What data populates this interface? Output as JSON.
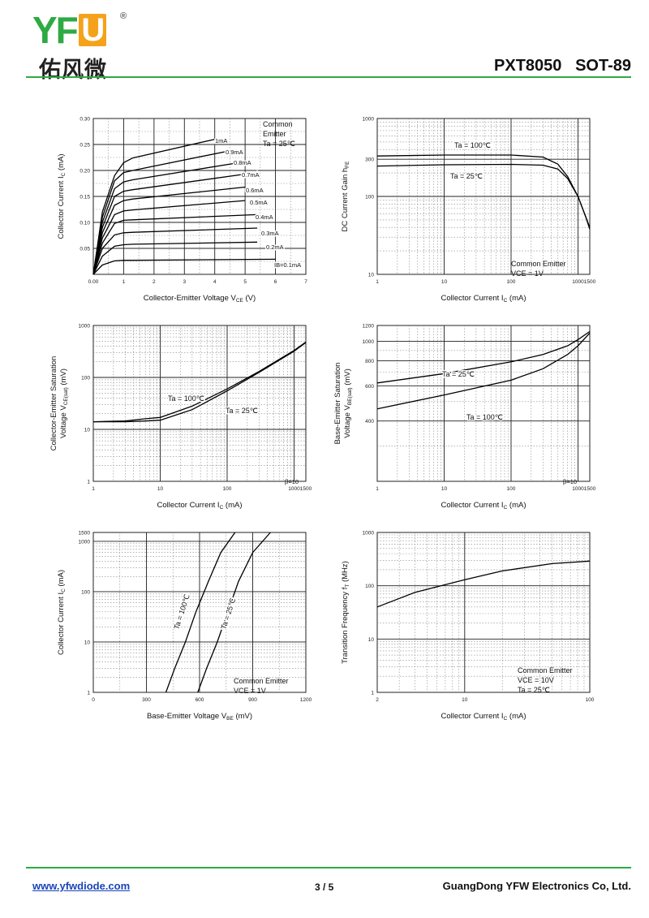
{
  "header": {
    "logo_letters": "YF",
    "logo_u": "U",
    "logo_reg": "®",
    "logo_cn": "佑风微",
    "title": "PXT8050   SOT-89"
  },
  "footer": {
    "website": "www.yfwdiode.com",
    "page": "3 / 5",
    "company": "GuangDong YFW Electronics Co, Ltd."
  },
  "colors": {
    "brand_green": "#2eaa43",
    "brand_orange": "#f5a21b",
    "link_blue": "#1a44b8"
  },
  "charts": [
    {
      "id": "ic-vce",
      "type": "line",
      "xlabel": "Collector-Emitter Voltage  V",
      "xlabel_sub": "CE",
      "xlabel_tail": "  (V)",
      "ylabel": "Collector Current  I",
      "ylabel_sub": "C",
      "ylabel_tail": "  (mA)",
      "xscale": "linear",
      "yscale": "linear",
      "xlim": [
        0,
        7
      ],
      "ylim": [
        0,
        0.3
      ],
      "xticks": [
        {
          "v": 0,
          "t": "0.00"
        },
        {
          "v": 1,
          "t": "1"
        },
        {
          "v": 2,
          "t": "2"
        },
        {
          "v": 3,
          "t": "3"
        },
        {
          "v": 4,
          "t": "4"
        },
        {
          "v": 5,
          "t": "5"
        },
        {
          "v": 6,
          "t": "6"
        },
        {
          "v": 7,
          "t": "7"
        }
      ],
      "yticks": [
        {
          "v": 0.05,
          "t": "0.05"
        },
        {
          "v": 0.1,
          "t": "0.10"
        },
        {
          "v": 0.15,
          "t": "0.15"
        },
        {
          "v": 0.2,
          "t": "0.20"
        },
        {
          "v": 0.25,
          "t": "0.25"
        },
        {
          "v": 0.3,
          "t": "0.30"
        }
      ],
      "notes": [
        {
          "lines": [
            "Common",
            "Emitter",
            "Ta = 25℃"
          ]
        }
      ],
      "series": [
        {
          "name": "1mA",
          "x": [
            0,
            0.3,
            0.7,
            1.0,
            1.3,
            4.0
          ],
          "y": [
            0,
            0.12,
            0.19,
            0.215,
            0.224,
            0.26
          ]
        },
        {
          "name": "0.9mA",
          "x": [
            0,
            0.3,
            0.7,
            1.0,
            1.3,
            4.5
          ],
          "y": [
            0,
            0.11,
            0.18,
            0.196,
            0.2,
            0.238
          ]
        },
        {
          "name": "0.8mA",
          "x": [
            0,
            0.3,
            0.7,
            1.0,
            1.3,
            4.8
          ],
          "y": [
            0,
            0.1,
            0.165,
            0.178,
            0.182,
            0.215
          ]
        },
        {
          "name": "0.7mA",
          "x": [
            0,
            0.3,
            0.7,
            1.0,
            1.3,
            5.0
          ],
          "y": [
            0,
            0.09,
            0.15,
            0.16,
            0.163,
            0.193
          ]
        },
        {
          "name": "0.6mA",
          "x": [
            0,
            0.3,
            0.7,
            1.0,
            1.3,
            5.0
          ],
          "y": [
            0,
            0.08,
            0.133,
            0.142,
            0.145,
            0.168
          ]
        },
        {
          "name": "0.5mA",
          "x": [
            0,
            0.3,
            0.7,
            1.0,
            1.3,
            5.0
          ],
          "y": [
            0,
            0.07,
            0.115,
            0.122,
            0.124,
            0.142
          ]
        },
        {
          "name": "0.4mA",
          "x": [
            0,
            0.3,
            0.7,
            1.0,
            1.3,
            5.4
          ],
          "y": [
            0,
            0.06,
            0.098,
            0.104,
            0.105,
            0.115
          ]
        },
        {
          "name": "0.3mA",
          "x": [
            0,
            0.3,
            0.7,
            1.0,
            1.3,
            5.4
          ],
          "y": [
            0,
            0.05,
            0.076,
            0.08,
            0.081,
            0.089
          ]
        },
        {
          "name": "0.2mA",
          "x": [
            0,
            0.3,
            0.7,
            1.0,
            1.3,
            5.4
          ],
          "y": [
            0,
            0.035,
            0.054,
            0.057,
            0.058,
            0.062
          ]
        },
        {
          "name": "IB=0.1mA",
          "x": [
            0,
            0.3,
            0.7,
            1.0,
            1.3,
            6.0
          ],
          "y": [
            0,
            0.018,
            0.026,
            0.027,
            0.027,
            0.029
          ]
        }
      ],
      "curve_labels": [
        "1mA",
        "0.9mA",
        "0.8mA",
        "0.7mA",
        "0.6mA",
        "0.5mA",
        "0.4mA",
        "0.3mA",
        "0.2mA",
        "IB=0.1mA"
      ]
    },
    {
      "id": "hfe-ic",
      "type": "line",
      "xlabel": "Collector Current  I",
      "xlabel_sub": "C",
      "xlabel_tail": "  (mA)",
      "ylabel": "DC Current Gain  h",
      "ylabel_sub": "FE",
      "ylabel_tail": "",
      "xscale": "log",
      "yscale": "log",
      "xlim": [
        1,
        1500
      ],
      "ylim": [
        10,
        1000
      ],
      "xticks": [
        {
          "v": 1,
          "t": "1"
        },
        {
          "v": 10,
          "t": "10"
        },
        {
          "v": 100,
          "t": "100"
        },
        {
          "v": 1000,
          "t": "1000"
        },
        {
          "v": 1500,
          "t": "1500"
        }
      ],
      "yticks": [
        {
          "v": 10,
          "t": "10"
        },
        {
          "v": 100,
          "t": "100"
        },
        {
          "v": 300,
          "t": "300"
        },
        {
          "v": 1000,
          "t": "1000"
        }
      ],
      "notes": [
        {
          "lines": [
            "Common Emitter",
            "VCE = 1V"
          ]
        }
      ],
      "series": [
        {
          "name": "Ta = 100℃",
          "x": [
            1,
            10,
            100,
            300,
            500,
            700,
            1000,
            1300,
            1500
          ],
          "y": [
            330,
            340,
            340,
            320,
            260,
            180,
            100,
            55,
            40
          ]
        },
        {
          "name": "Ta = 25℃",
          "x": [
            1,
            10,
            100,
            300,
            500,
            700,
            1000,
            1300,
            1500
          ],
          "y": [
            245,
            255,
            258,
            252,
            225,
            170,
            100,
            55,
            38
          ]
        }
      ]
    },
    {
      "id": "vcesat-ic",
      "type": "line",
      "xlabel": "Collector Current  I",
      "xlabel_sub": "C",
      "xlabel_tail": "  (mA)",
      "ylabel": "Collector-Emitter Saturation",
      "ylabel2": "Voltage V",
      "ylabel2_sub": "CE(sat)",
      "ylabel2_tail": "  (mV)",
      "xscale": "log",
      "yscale": "log",
      "xlim": [
        1,
        1500
      ],
      "ylim": [
        1,
        1000
      ],
      "xticks": [
        {
          "v": 1,
          "t": "1"
        },
        {
          "v": 10,
          "t": "10"
        },
        {
          "v": 100,
          "t": "100"
        },
        {
          "v": 1000,
          "t": "1000"
        },
        {
          "v": 1500,
          "t": "1500"
        }
      ],
      "yticks": [
        {
          "v": 1,
          "t": "1"
        },
        {
          "v": 10,
          "t": "10"
        },
        {
          "v": 100,
          "t": "100"
        },
        {
          "v": 1000,
          "t": "1000"
        }
      ],
      "notes": [
        {
          "lines": [
            "β=10"
          ]
        }
      ],
      "series": [
        {
          "name": "Ta = 100℃",
          "x": [
            1,
            3,
            6,
            10,
            30,
            100,
            300,
            1000,
            1500
          ],
          "y": [
            14,
            14.5,
            16,
            17,
            28,
            60,
            130,
            330,
            480
          ]
        },
        {
          "name": "Ta = 25℃",
          "x": [
            1,
            3,
            6,
            10,
            30,
            100,
            300,
            1000,
            1500
          ],
          "y": [
            14,
            14,
            14.5,
            15,
            24,
            55,
            125,
            320,
            470
          ]
        }
      ]
    },
    {
      "id": "vbesat-ic",
      "type": "line",
      "xlabel": "Collector Current  I",
      "xlabel_sub": "C",
      "xlabel_tail": "  (mA)",
      "ylabel": "Base-Emitter Saturation",
      "ylabel2": "Voltage V",
      "ylabel2_sub": "BE(sat)",
      "ylabel2_tail": "  (mV)",
      "xscale": "log",
      "yscale": "log",
      "xlim": [
        1,
        1500
      ],
      "ylim": [
        200,
        1200
      ],
      "xticks": [
        {
          "v": 1,
          "t": "1"
        },
        {
          "v": 10,
          "t": "10"
        },
        {
          "v": 100,
          "t": "100"
        },
        {
          "v": 1000,
          "t": "1000"
        },
        {
          "v": 1500,
          "t": "1500"
        }
      ],
      "yticks": [
        {
          "v": 400,
          "t": "400"
        },
        {
          "v": 600,
          "t": "600"
        },
        {
          "v": 800,
          "t": "800"
        },
        {
          "v": 1000,
          "t": "1000"
        },
        {
          "v": 1200,
          "t": "1200"
        }
      ],
      "notes": [
        {
          "lines": [
            "β=10"
          ]
        }
      ],
      "series": [
        {
          "name": "Ta = 25℃",
          "x": [
            1,
            10,
            100,
            300,
            700,
            1000,
            1500
          ],
          "y": [
            620,
            690,
            790,
            860,
            950,
            1020,
            1120
          ]
        },
        {
          "name": "Ta = 100℃",
          "x": [
            1,
            10,
            100,
            300,
            700,
            1000,
            1500
          ],
          "y": [
            460,
            540,
            640,
            730,
            860,
            950,
            1100
          ]
        }
      ]
    },
    {
      "id": "ic-vbe",
      "type": "line",
      "xlabel": "Base-Emitter Voltage  V",
      "xlabel_sub": "BE",
      "xlabel_tail": "  (mV)",
      "ylabel": "Collector Current  I",
      "ylabel_sub": "C",
      "ylabel_tail": "  (mA)",
      "xscale": "linear",
      "yscale": "log",
      "xlim": [
        0,
        1200
      ],
      "ylim": [
        1,
        1500
      ],
      "xticks": [
        {
          "v": 0,
          "t": "0"
        },
        {
          "v": 300,
          "t": "300"
        },
        {
          "v": 600,
          "t": "600"
        },
        {
          "v": 900,
          "t": "900"
        },
        {
          "v": 1200,
          "t": "1200"
        }
      ],
      "yticks": [
        {
          "v": 1,
          "t": "1"
        },
        {
          "v": 10,
          "t": "10"
        },
        {
          "v": 100,
          "t": "100"
        },
        {
          "v": 1000,
          "t": "1000"
        },
        {
          "v": 1500,
          "t": "1500"
        }
      ],
      "notes": [
        {
          "lines": [
            "Common Emitter",
            "VCE = 1V"
          ]
        }
      ],
      "series": [
        {
          "name": "Ta = 100℃",
          "x": [
            410,
            460,
            520,
            580,
            650,
            720,
            800
          ],
          "y": [
            1,
            3,
            10,
            40,
            160,
            600,
            1500
          ]
        },
        {
          "name": "Ta = 25℃",
          "x": [
            590,
            640,
            700,
            760,
            820,
            900,
            1000
          ],
          "y": [
            1,
            3,
            10,
            40,
            160,
            600,
            1500
          ]
        }
      ]
    },
    {
      "id": "ft-ic",
      "type": "line",
      "xlabel": "Collector Current  I",
      "xlabel_sub": "C",
      "xlabel_tail": "  (mA)",
      "ylabel": "Transition Frequency   f",
      "ylabel_sub": "T",
      "ylabel_tail": "  (MHz)",
      "xscale": "log",
      "yscale": "log",
      "xlim": [
        2,
        100
      ],
      "ylim": [
        1,
        1000
      ],
      "xticks": [
        {
          "v": 2,
          "t": "2"
        },
        {
          "v": 10,
          "t": "10"
        },
        {
          "v": 100,
          "t": "100"
        }
      ],
      "yticks": [
        {
          "v": 1,
          "t": "1"
        },
        {
          "v": 10,
          "t": "10"
        },
        {
          "v": 100,
          "t": "100"
        },
        {
          "v": 1000,
          "t": "1000"
        }
      ],
      "notes": [
        {
          "lines": [
            "Common Emitter",
            "VCE = 10V",
            "Ta = 25℃"
          ]
        }
      ],
      "series": [
        {
          "name": "fT",
          "x": [
            2,
            4,
            10,
            20,
            50,
            100
          ],
          "y": [
            40,
            75,
            130,
            190,
            260,
            290
          ]
        }
      ]
    }
  ]
}
